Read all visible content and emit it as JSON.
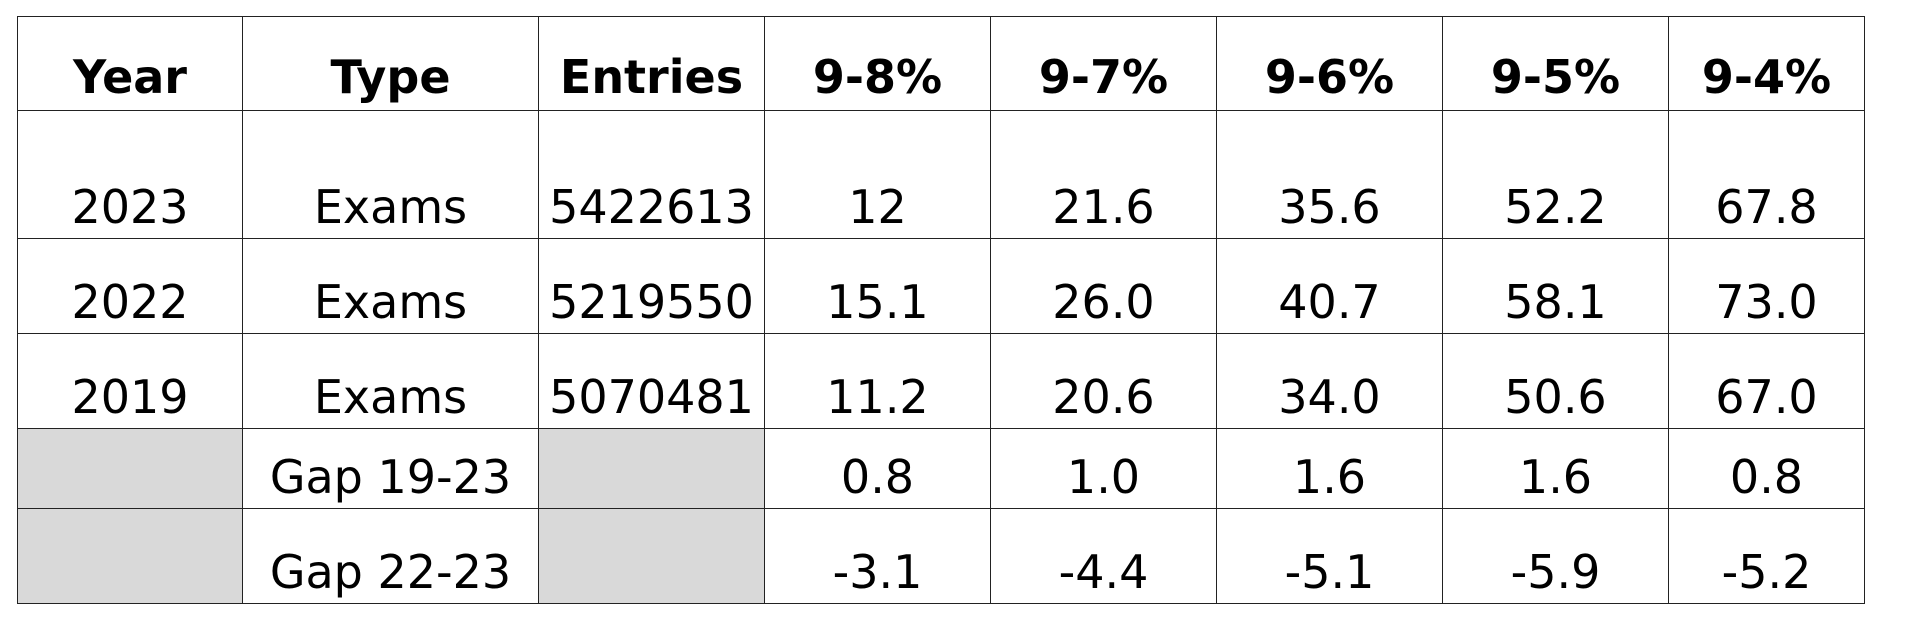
{
  "table": {
    "headers": [
      "Year",
      "Type",
      "Entries",
      "9-8%",
      "9-7%",
      "9-6%",
      "9-5%",
      "9-4%"
    ],
    "rows": [
      [
        "2023",
        "Exams",
        "5422613",
        "12",
        "21.6",
        "35.6",
        "52.2",
        "67.8"
      ],
      [
        "2022",
        "Exams",
        "5219550",
        "15.1",
        "26.0",
        "40.7",
        "58.1",
        "73.0"
      ],
      [
        "2019",
        "Exams",
        "5070481",
        "11.2",
        "20.6",
        "34.0",
        "50.6",
        "67.0"
      ],
      [
        "",
        "Gap 19-23",
        "",
        "0.8",
        "1.0",
        "1.6",
        "1.6",
        "0.8"
      ],
      [
        "",
        "Gap 22-23",
        "",
        "-3.1",
        "-4.4",
        "-5.1",
        "-5.9",
        "-5.2"
      ]
    ],
    "shaded_color": "#d9d9d9"
  }
}
